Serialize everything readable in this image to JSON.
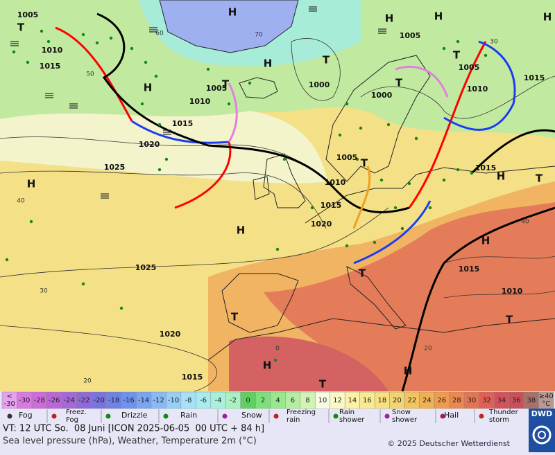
{
  "map": {
    "pressure_labels": [
      "1005",
      "1010",
      "1015",
      "1005",
      "1010",
      "1015",
      "1020",
      "1025",
      "1000",
      "1005",
      "1000",
      "1005",
      "1010",
      "1015",
      "1005",
      "1010",
      "1015",
      "1020",
      "1015",
      "1025",
      "1015",
      "1010",
      "1020",
      "1015"
    ],
    "isotherm_labels": [
      "60",
      "70",
      "50",
      "40",
      "30",
      "20",
      "0",
      "20",
      "40",
      "30"
    ],
    "centers": [
      "H",
      "H",
      "H",
      "H",
      "H",
      "H",
      "H",
      "H",
      "H",
      "H",
      "H",
      "H",
      "T",
      "T",
      "T",
      "T",
      "T",
      "T",
      "T",
      "T",
      "T",
      "T",
      "T"
    ]
  },
  "color_scale": {
    "under": [
      "<",
      "-30"
    ],
    "under_color": "#e6a2f0",
    "steps": [
      -30,
      -28,
      -26,
      -24,
      -22,
      -20,
      -18,
      -16,
      -14,
      -12,
      -10,
      -8,
      -6,
      -4,
      -2,
      0,
      2,
      4,
      6,
      8,
      10,
      12,
      14,
      16,
      18,
      20,
      22,
      24,
      26,
      28,
      30,
      32,
      34,
      36,
      38
    ],
    "colors": [
      "#d97ae3",
      "#cc6cda",
      "#b967d7",
      "#a468d7",
      "#8f69da",
      "#7b72e1",
      "#6e82e8",
      "#6e92f0",
      "#78a6f4",
      "#87baf6",
      "#97cff8",
      "#a7e1f8",
      "#a9ecf0",
      "#a9f0dc",
      "#aaf0c2",
      "#5fd05f",
      "#7ee07a",
      "#9ae88e",
      "#b4eea0",
      "#cff4b4",
      "#f7fbe2",
      "#fbf8c8",
      "#fbf2a8",
      "#f8ea90",
      "#f6e080",
      "#f3d470",
      "#f2c460",
      "#f0b054",
      "#ee9c50",
      "#ea8850",
      "#e47452",
      "#de6056",
      "#d6525a",
      "#c8505a",
      "#a87068"
    ],
    "over": [
      "≥40",
      "°C"
    ],
    "over_color": "#b89a92"
  },
  "legend": [
    {
      "lines": [
        "Fog"
      ]
    },
    {
      "lines": [
        "Freez.",
        "Fog"
      ]
    },
    {
      "lines": [
        "Drizzle"
      ]
    },
    {
      "lines": [
        "Rain"
      ]
    },
    {
      "lines": [
        "Snow"
      ]
    },
    {
      "lines": [
        "Freezing",
        "rain"
      ]
    },
    {
      "lines": [
        "Rain",
        "shower"
      ]
    },
    {
      "lines": [
        "Snow",
        "shower"
      ]
    },
    {
      "lines": [
        "Hail"
      ]
    },
    {
      "lines": [
        "Thunder",
        "storm"
      ]
    }
  ],
  "footer": {
    "valid_time": "VT: 12 UTC So.  08 Juni [ICON 2025-06-05  00 UTC + 84 h]",
    "description": "Sea level pressure (hPa), Weather, Temperature 2m (°C)",
    "copyright": "© 2025 Deutscher Wetterdienst",
    "logo": "DWD"
  }
}
